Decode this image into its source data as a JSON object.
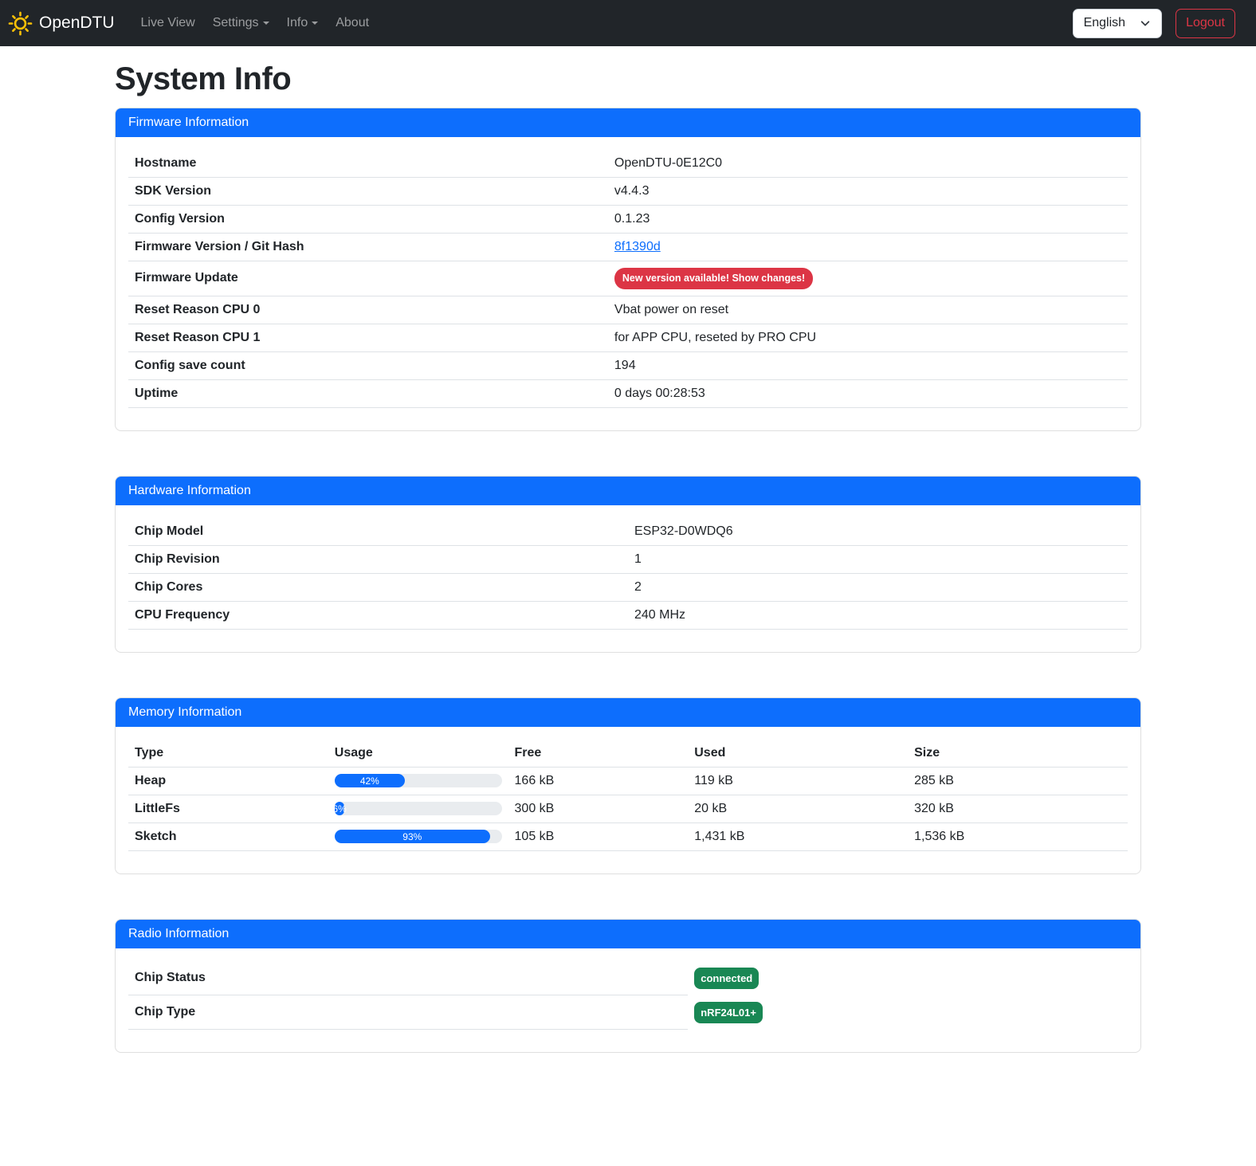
{
  "colors": {
    "primary_blue": "#0d6efd",
    "danger_red": "#dc3545",
    "success_green": "#198754",
    "navbar_bg": "#212529",
    "brand_icon_yellow": "#ffc107",
    "progress_track": "#e9ecef"
  },
  "navbar": {
    "brand": "OpenDTU",
    "items": [
      {
        "label": "Live View",
        "dropdown": false
      },
      {
        "label": "Settings",
        "dropdown": true
      },
      {
        "label": "Info",
        "dropdown": true
      },
      {
        "label": "About",
        "dropdown": false
      }
    ],
    "language_selected": "English",
    "logout_label": "Logout"
  },
  "page": {
    "title": "System Info"
  },
  "firmware": {
    "title": "Firmware Information",
    "rows": [
      {
        "label": "Hostname",
        "value": "OpenDTU-0E12C0"
      },
      {
        "label": "SDK Version",
        "value": "v4.4.3"
      },
      {
        "label": "Config Version",
        "value": "0.1.23"
      },
      {
        "label": "Firmware Version / Git Hash",
        "value": "8f1390d",
        "type": "link"
      },
      {
        "label": "Firmware Update",
        "value": "New version available! Show changes!",
        "type": "badge-danger"
      },
      {
        "label": "Reset Reason CPU 0",
        "value": "Vbat power on reset"
      },
      {
        "label": "Reset Reason CPU 1",
        "value": "for APP CPU, reseted by PRO CPU"
      },
      {
        "label": "Config save count",
        "value": "194"
      },
      {
        "label": "Uptime",
        "value": "0 days 00:28:53"
      }
    ]
  },
  "hardware": {
    "title": "Hardware Information",
    "rows": [
      {
        "label": "Chip Model",
        "value": "ESP32-D0WDQ6"
      },
      {
        "label": "Chip Revision",
        "value": "1"
      },
      {
        "label": "Chip Cores",
        "value": "2"
      },
      {
        "label": "CPU Frequency",
        "value": "240 MHz"
      }
    ]
  },
  "memory": {
    "title": "Memory Information",
    "headers": {
      "type": "Type",
      "usage": "Usage",
      "free": "Free",
      "used": "Used",
      "size": "Size"
    },
    "rows": [
      {
        "type": "Heap",
        "usage_pct": 42,
        "usage_label": "42%",
        "free": "166 kB",
        "used": "119 kB",
        "size": "285 kB"
      },
      {
        "type": "LittleFs",
        "usage_pct": 6,
        "usage_label": "6%",
        "free": "300 kB",
        "used": "20 kB",
        "size": "320 kB"
      },
      {
        "type": "Sketch",
        "usage_pct": 93,
        "usage_label": "93%",
        "free": "105 kB",
        "used": "1,431 kB",
        "size": "1,536 kB"
      }
    ]
  },
  "radio": {
    "title": "Radio Information",
    "rows": [
      {
        "label": "Chip Status",
        "badge": "connected"
      },
      {
        "label": "Chip Type",
        "badge": "nRF24L01+"
      }
    ]
  }
}
